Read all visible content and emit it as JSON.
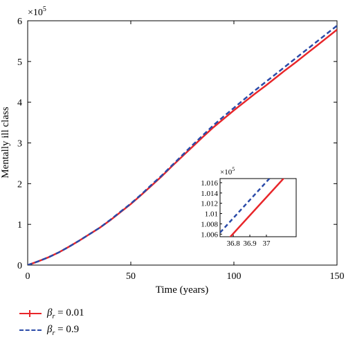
{
  "chart_data": {
    "type": "line",
    "xlabel": "Time (years)",
    "ylabel": "Mentally ill class",
    "y_multiplier": "×10",
    "y_multiplier_exp": "5",
    "xlim": [
      0,
      150
    ],
    "ylim": [
      0,
      6
    ],
    "xticks": [
      0,
      50,
      100,
      150
    ],
    "yticks": [
      0,
      1,
      2,
      3,
      4,
      5,
      6
    ],
    "x": [
      0,
      5,
      10,
      15,
      20,
      25,
      30,
      35,
      40,
      45,
      50,
      55,
      60,
      65,
      70,
      75,
      80,
      85,
      90,
      95,
      100,
      105,
      110,
      115,
      120,
      125,
      130,
      135,
      140,
      145,
      150
    ],
    "series": [
      {
        "name": "β_r = 0.01",
        "color": "#e8262a",
        "style": "solid",
        "values": [
          0.0,
          0.09,
          0.19,
          0.31,
          0.45,
          0.6,
          0.76,
          0.92,
          1.1,
          1.3,
          1.5,
          1.72,
          1.95,
          2.18,
          2.43,
          2.67,
          2.91,
          3.15,
          3.38,
          3.59,
          3.8,
          4.0,
          4.2,
          4.39,
          4.59,
          4.79,
          4.98,
          5.18,
          5.38,
          5.58,
          5.78
        ]
      },
      {
        "name": "β_r = 0.9",
        "color": "#2a4aa8",
        "style": "dashed",
        "values": [
          0.0,
          0.09,
          0.19,
          0.31,
          0.45,
          0.6,
          0.76,
          0.92,
          1.11,
          1.31,
          1.51,
          1.73,
          1.97,
          2.2,
          2.45,
          2.7,
          2.95,
          3.19,
          3.43,
          3.65,
          3.86,
          4.07,
          4.28,
          4.48,
          4.68,
          4.88,
          5.08,
          5.28,
          5.48,
          5.68,
          5.88
        ]
      }
    ],
    "inset": {
      "y_multiplier": "×10",
      "y_multiplier_exp": "5",
      "xlim": [
        36.72,
        37.18
      ],
      "ylim": [
        1.0055,
        1.0168
      ],
      "xticks": [
        36.8,
        36.9,
        37
      ],
      "xtick_labels": [
        "36.8",
        "36.9",
        "37"
      ],
      "yticks": [
        1.006,
        1.008,
        1.01,
        1.012,
        1.014,
        1.016
      ],
      "ytick_labels": [
        "1.006",
        "1.008",
        "1.01",
        "1.012",
        "1.014",
        "1.016"
      ],
      "series": [
        {
          "name": "β_r = 0.01",
          "x": [
            36.72,
            37.18
          ],
          "values": [
            1.0033,
            1.0195
          ]
        },
        {
          "name": "β_r = 0.9",
          "x": [
            36.72,
            37.18
          ],
          "values": [
            1.0063,
            1.0225
          ]
        }
      ]
    }
  },
  "legend": [
    {
      "symbol": "β",
      "sub": "r",
      "text": " = 0.01",
      "color": "#e8262a",
      "style": "solid"
    },
    {
      "symbol": "β",
      "sub": "r",
      "text": " = 0.9",
      "color": "#2a4aa8",
      "style": "dashed"
    }
  ]
}
